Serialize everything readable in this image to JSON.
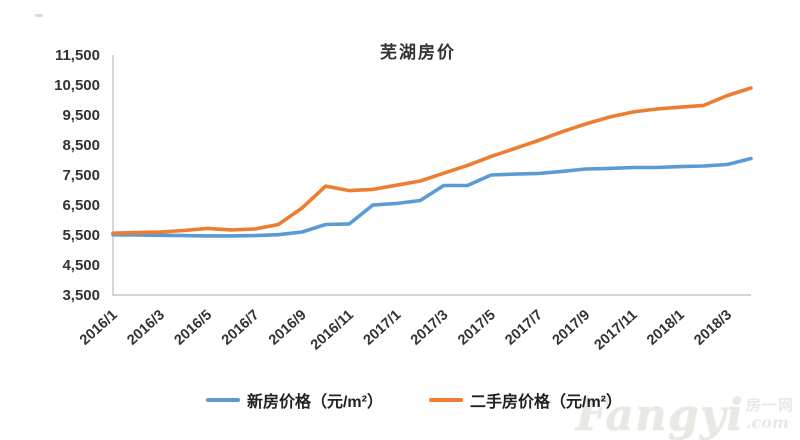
{
  "title": "芜湖房价",
  "legend": [
    {
      "label": "新房价格（元/m²）",
      "color": "#5B9BD5"
    },
    {
      "label": "二手房价格（元/m²）",
      "color": "#ED7D31"
    }
  ],
  "watermark": {
    "brand": "Fangyi",
    "cn": "房一网",
    "suffix": ".com"
  },
  "colors": {
    "axis": "#c6c6c6",
    "tick_text": "#333333",
    "watermark": "#e9e9e4"
  },
  "chart_data": {
    "type": "line",
    "title": "芜湖房价",
    "x": [
      "2016/1",
      "2016/2",
      "2016/3",
      "2016/4",
      "2016/5",
      "2016/6",
      "2016/7",
      "2016/8",
      "2016/9",
      "2016/10",
      "2016/11",
      "2016/12",
      "2017/1",
      "2017/2",
      "2017/3",
      "2017/4",
      "2017/5",
      "2017/6",
      "2017/7",
      "2017/8",
      "2017/9",
      "2017/10",
      "2017/11",
      "2017/12",
      "2018/1",
      "2018/2",
      "2018/3",
      "2018/4"
    ],
    "x_tick_labels": [
      "2016/1",
      "2016/3",
      "2016/5",
      "2016/7",
      "2016/9",
      "2016/11",
      "2017/1",
      "2017/3",
      "2017/5",
      "2017/7",
      "2017/9",
      "2017/11",
      "2018/1",
      "2018/3"
    ],
    "series": [
      {
        "name": "新房价格（元/m²）",
        "color": "#5B9BD5",
        "values": [
          5510,
          5500,
          5490,
          5480,
          5470,
          5470,
          5480,
          5510,
          5600,
          5850,
          5870,
          6500,
          6550,
          6650,
          7150,
          7150,
          7500,
          7530,
          7550,
          7620,
          7700,
          7720,
          7750,
          7750,
          7780,
          7800,
          7850,
          8050
        ]
      },
      {
        "name": "二手房价格（元/m²）",
        "color": "#ED7D31",
        "values": [
          5560,
          5580,
          5600,
          5650,
          5720,
          5670,
          5700,
          5850,
          6400,
          7130,
          6980,
          7020,
          7160,
          7300,
          7560,
          7820,
          8120,
          8380,
          8650,
          8940,
          9200,
          9430,
          9600,
          9700,
          9760,
          9820,
          10150,
          10400
        ]
      }
    ],
    "ylim": [
      3500,
      11500
    ],
    "ytick_step": 1000,
    "ylabel": "",
    "xlabel": "",
    "grid": false,
    "legend_position": "bottom"
  }
}
